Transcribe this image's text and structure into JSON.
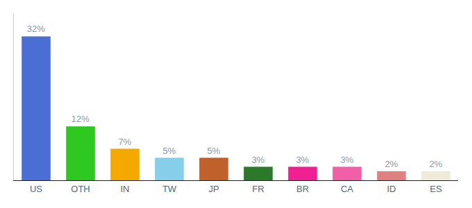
{
  "chart_data": {
    "type": "bar",
    "categories": [
      "US",
      "OTH",
      "IN",
      "TW",
      "JP",
      "FR",
      "BR",
      "CA",
      "ID",
      "ES"
    ],
    "values": [
      32,
      12,
      7,
      5,
      5,
      3,
      3,
      3,
      2,
      2
    ],
    "value_labels": [
      "32%",
      "12%",
      "7%",
      "5%",
      "5%",
      "3%",
      "3%",
      "3%",
      "2%",
      "2%"
    ],
    "colors": [
      "#4a6ed4",
      "#2ec820",
      "#f5a800",
      "#87ceeb",
      "#c0602a",
      "#2a7a2a",
      "#f02090",
      "#f060a8",
      "#e08080",
      "#f0ead8"
    ],
    "ylim": [
      0,
      37
    ],
    "data_labels": true,
    "tick_labels": "x",
    "grid": false
  }
}
